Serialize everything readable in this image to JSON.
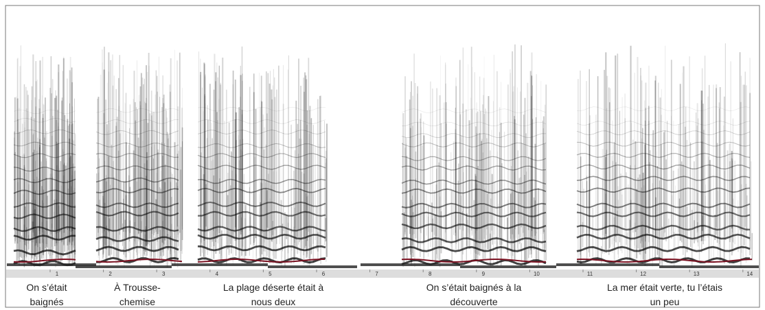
{
  "timeline": {
    "ticks": [
      "1",
      "2",
      "3",
      "4",
      "5",
      "6",
      "7",
      "8",
      "9",
      "10",
      "11",
      "12",
      "13",
      "14"
    ]
  },
  "captions": [
    {
      "lines": [
        "On s’était",
        "baignés"
      ]
    },
    {
      "lines": [
        "À Trousse-",
        "chemise"
      ]
    },
    {
      "lines": [
        "La plage déserte était à",
        "nous deux"
      ]
    },
    {
      "lines": [
        "On s’était baignés à la",
        "découverte"
      ]
    },
    {
      "lines": [
        "La mer était verte, tu l’étais",
        "un peu"
      ]
    }
  ]
}
